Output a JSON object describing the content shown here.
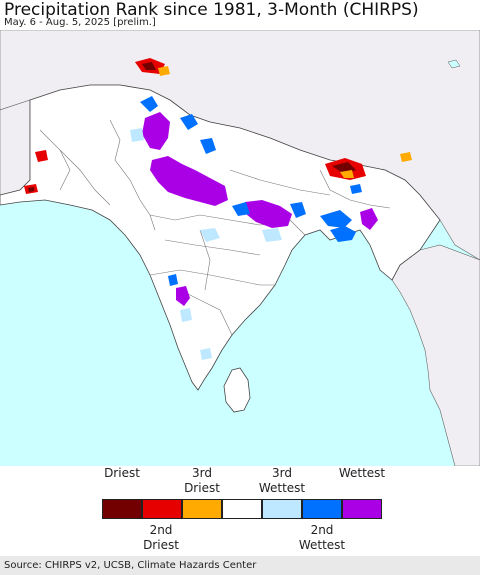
{
  "header": {
    "title": "Precipitation Rank since 1981, 3-Month (CHIRPS)",
    "subtitle": "May. 6 - Aug. 5, 2025 [prelim.]"
  },
  "map": {
    "ocean_color": "#ccffff",
    "land_color": "#ffffff",
    "outside_land_color": "#f0eef2",
    "border_color": "#555555"
  },
  "legend": {
    "top_labels": [
      {
        "line1": "",
        "line2": "Driest"
      },
      {
        "line1": "3rd",
        "line2": "Driest"
      },
      {
        "line1": "3rd",
        "line2": "Wettest"
      },
      {
        "line1": "",
        "line2": "Wettest"
      }
    ],
    "bottom_labels": [
      {
        "line1": "2nd",
        "line2": "Driest"
      },
      {
        "line1": "2nd",
        "line2": "Wettest"
      }
    ],
    "colors": [
      "#730000",
      "#e60000",
      "#ffaa00",
      "#ffffff",
      "#bee8ff",
      "#0070ff",
      "#aa00e6"
    ]
  },
  "footer": {
    "source": "Source: CHIRPS v2, UCSB, Climate Hazards Center"
  }
}
